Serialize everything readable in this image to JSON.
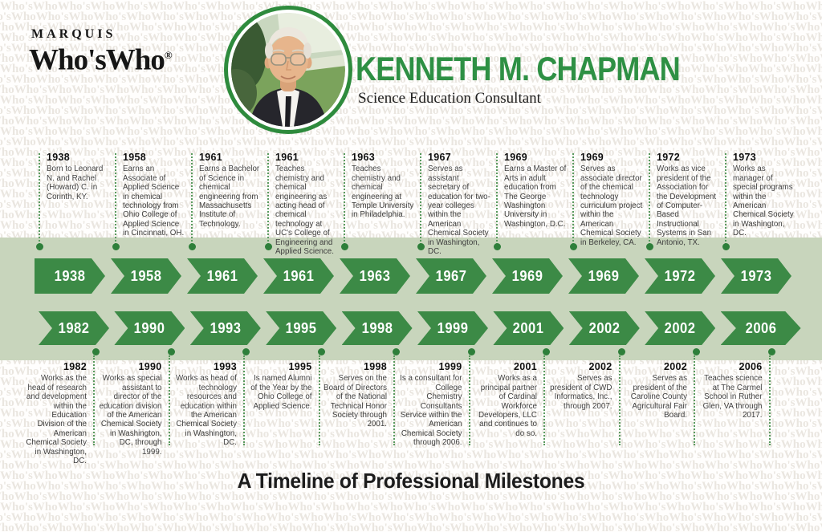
{
  "brand": {
    "top": "MARQUIS",
    "name": "Who'sWho",
    "registered": "®"
  },
  "header": {
    "name": "KENNETH M. CHAPMAN",
    "subtitle": "Science Education Consultant"
  },
  "footer": {
    "title": "A Timeline of Professional Milestones"
  },
  "watermark": {
    "text": "Who'sWho"
  },
  "colors": {
    "accent_green": "#2e9044",
    "arrow_green": "#3c8a46",
    "band_sage": "#c8d5bc",
    "dot_green": "#2e7f3a",
    "dotted_line_green": "#5a9b5f",
    "body_text": "#3e3e3e",
    "watermark_gray": "#eae6e0",
    "logo_ink": "#161616"
  },
  "timeline": {
    "top": [
      {
        "year": "1938",
        "text": "Born to Leonard N. and Rachel (Howard) C. in Corinth, KY."
      },
      {
        "year": "1958",
        "text": "Earns an Associate of Applied Science in chemical technology from Ohio College of Applied Science in Cincinnati, OH."
      },
      {
        "year": "1961",
        "text": "Earns a Bachelor of Science in chemical engineering from Massachusetts Institute of Technology."
      },
      {
        "year": "1961",
        "text": "Teaches chemistry and chemical engineering as acting head of chemical technology at UC's College of Engineering and Applied Science."
      },
      {
        "year": "1963",
        "text": "Teaches chemistry and chemical engineering at Temple University in Philadelphia."
      },
      {
        "year": "1967",
        "text": "Serves as assistant secretary of education for two-year colleges within the American Chemical Society in Washington, DC."
      },
      {
        "year": "1969",
        "text": "Earns a Master of Arts in adult education from The George Washington University in Washington, D.C."
      },
      {
        "year": "1969",
        "text": "Serves as associate director of the chemical technology curriculum project within the American Chemical Society in Berkeley, CA."
      },
      {
        "year": "1972",
        "text": "Works as vice president of the Association for the Development of Computer-Based Instructional Systems in San Antonio, TX."
      },
      {
        "year": "1973",
        "text": "Works as manager of special programs within the American Chemical Society in Washington, DC."
      }
    ],
    "bottom": [
      {
        "year": "1982",
        "text": "Works as the head of research and development within the Education Division of the American Chemical Society in Washington, DC."
      },
      {
        "year": "1990",
        "text": "Works as special assistant to director of the education division of the American Chemical Society in Washington, DC, through 1999."
      },
      {
        "year": "1993",
        "text": "Works as head of technology resources and education within the American Chemical Society in Washington, DC."
      },
      {
        "year": "1995",
        "text": "Is named Alumni of the Year by the Ohio College of Applied Science."
      },
      {
        "year": "1998",
        "text": "Serves on the Board of Directors of the National Technical Honor Society through 2001."
      },
      {
        "year": "1999",
        "text": "Is a consultant for College Chemistry Consultants Service within the American Chemical Society through 2006."
      },
      {
        "year": "2001",
        "text": "Works as a principal partner of Cardinal Workforce Developers, LLC and continues to do so."
      },
      {
        "year": "2002",
        "text": "Serves as president of CWD Informatics, Inc., through 2007."
      },
      {
        "year": "2002",
        "text": "Serves as president of the Caroline County Agricultural Fair Board."
      },
      {
        "year": "2006",
        "text": "Teaches science at The Carmel School in Ruther Glen, VA through 2017."
      }
    ]
  }
}
